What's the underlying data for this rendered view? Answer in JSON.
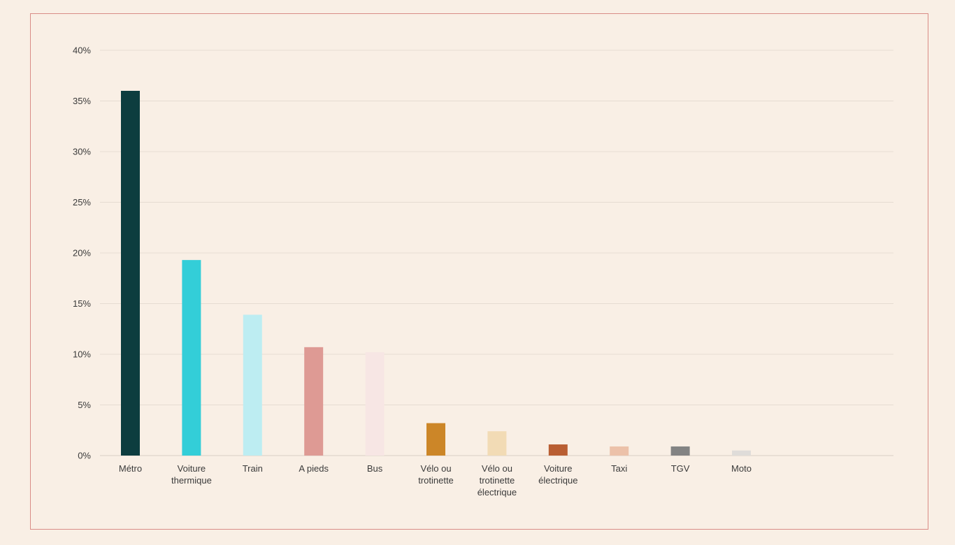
{
  "chart_data": {
    "type": "bar",
    "title": "",
    "xlabel": "",
    "ylabel": "",
    "ylim": [
      0,
      40
    ],
    "y_ticks": [
      {
        "value": 0,
        "label": "0%"
      },
      {
        "value": 5,
        "label": "5%"
      },
      {
        "value": 10,
        "label": "10%"
      },
      {
        "value": 15,
        "label": "15%"
      },
      {
        "value": 20,
        "label": "20%"
      },
      {
        "value": 25,
        "label": "25%"
      },
      {
        "value": 30,
        "label": "30%"
      },
      {
        "value": 35,
        "label": "35%"
      },
      {
        "value": 40,
        "label": "40%"
      }
    ],
    "grid": true,
    "categories": [
      [
        "Métro"
      ],
      [
        "Voiture",
        "thermique"
      ],
      [
        "Train"
      ],
      [
        "A pieds"
      ],
      [
        "Bus"
      ],
      [
        "Vélo ou",
        "trotinette"
      ],
      [
        "Vélo ou",
        "trotinette",
        "électrique"
      ],
      [
        "Voiture",
        "électrique"
      ],
      [
        "Taxi"
      ],
      [
        "TGV"
      ],
      [
        "Moto"
      ]
    ],
    "values": [
      36.0,
      19.3,
      13.9,
      10.7,
      10.2,
      3.2,
      2.4,
      1.1,
      0.9,
      0.9,
      0.5
    ],
    "colors": [
      "#0d3d3f",
      "#33ced8",
      "#bdedf2",
      "#de9a94",
      "#f7e6e4",
      "#cc8628",
      "#f2dbb5",
      "#b95e32",
      "#ecc1a9",
      "#838383",
      "#dfdcd9"
    ]
  }
}
